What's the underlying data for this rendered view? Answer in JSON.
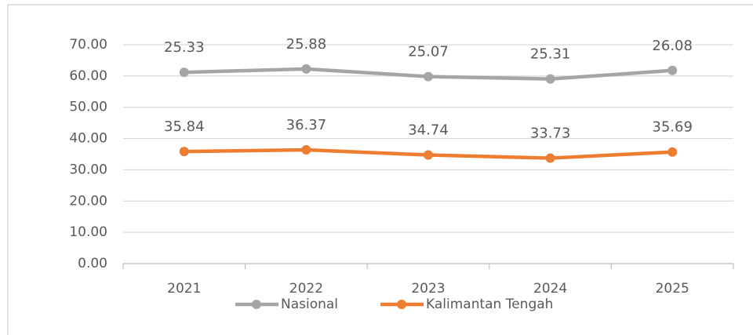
{
  "chart_data": {
    "type": "line",
    "stacked": true,
    "categories": [
      "2021",
      "2022",
      "2023",
      "2024",
      "2025"
    ],
    "series": [
      {
        "name": "Nasional",
        "color": "#a5a5a5",
        "values": [
          25.33,
          25.88,
          25.07,
          25.31,
          26.08
        ]
      },
      {
        "name": "Kalimantan Tengah",
        "color": "#ed7d31",
        "values": [
          35.84,
          36.37,
          34.74,
          33.73,
          35.69
        ]
      }
    ],
    "ylim": [
      0,
      70
    ],
    "yticks": [
      {
        "value": 0,
        "label": "0.00"
      },
      {
        "value": 10,
        "label": "10.00"
      },
      {
        "value": 20,
        "label": "20.00"
      },
      {
        "value": 30,
        "label": "30.00"
      },
      {
        "value": 40,
        "label": "40.00"
      },
      {
        "value": 50,
        "label": "50.00"
      },
      {
        "value": 60,
        "label": "60.00"
      },
      {
        "value": 70,
        "label": "70.00"
      }
    ],
    "grid": true,
    "legend": "bottom"
  }
}
